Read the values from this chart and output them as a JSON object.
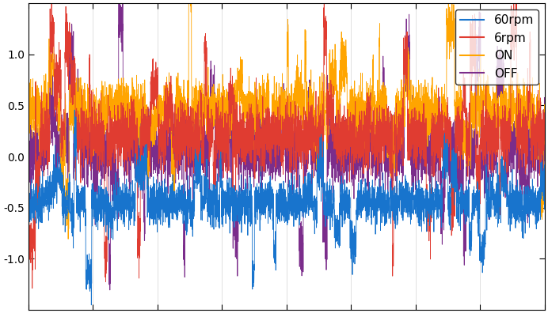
{
  "title": "",
  "xlabel": "",
  "ylabel": "",
  "legend_labels": [
    "60rpm",
    "6rpm",
    "ON",
    "OFF"
  ],
  "colors": [
    "#1874cd",
    "#e03c31",
    "#ffa500",
    "#7b2d8b"
  ],
  "n_samples": 5000,
  "seed": 42,
  "ylim_min": -1.5,
  "ylim_max": 1.5,
  "linewidth": 0.6,
  "background_color": "#ffffff",
  "figsize": [
    6.92,
    3.96
  ],
  "dpi": 100,
  "yticks": [
    -1.0,
    -0.5,
    0.0,
    0.5,
    1.0
  ],
  "xticks_count": 9
}
